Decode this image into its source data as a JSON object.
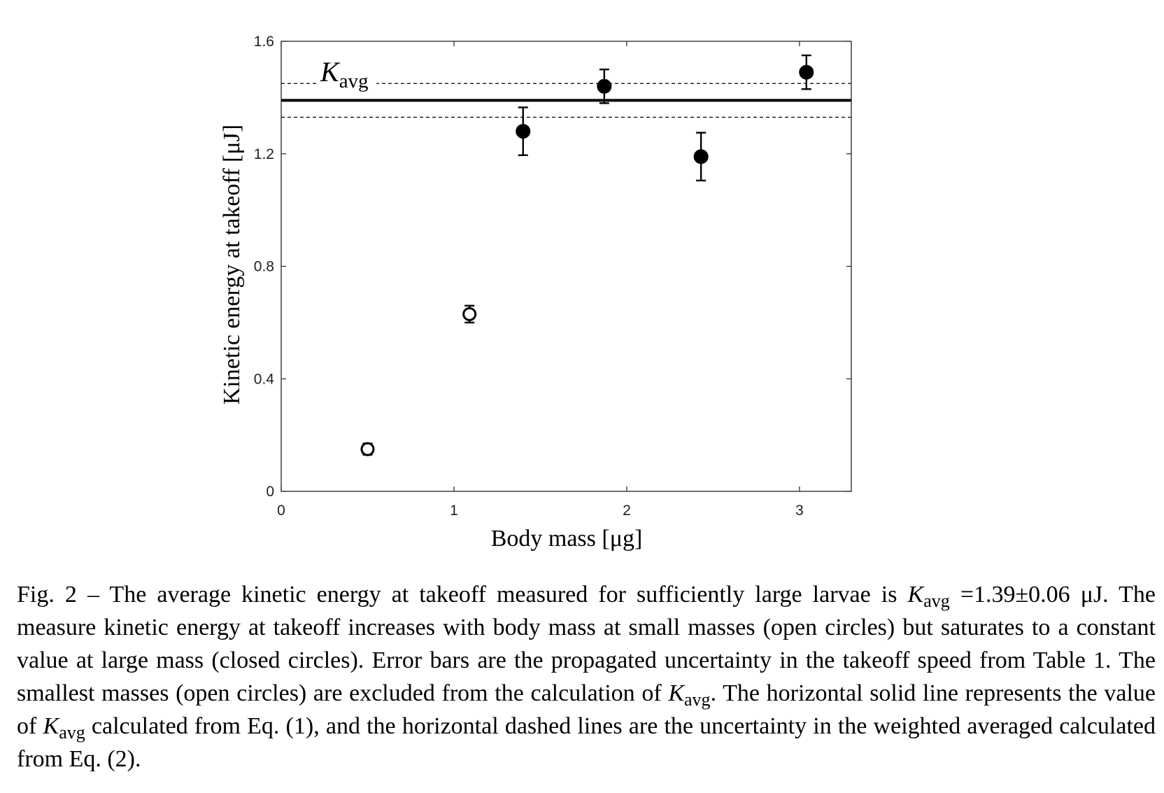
{
  "chart_data": {
    "type": "scatter",
    "xlabel": "Body mass [μg]",
    "ylabel": "Kinetic energy at takeoff [μJ]",
    "xlim": [
      0,
      3.3
    ],
    "ylim": [
      0,
      1.6
    ],
    "x_ticks": [
      "0",
      "1",
      "2",
      "3"
    ],
    "y_ticks": [
      "0",
      "0.4",
      "0.8",
      "1.2",
      "1.6"
    ],
    "grid": false,
    "series": [
      {
        "marker": "open-circle",
        "points": [
          {
            "x": 0.5,
            "y": 0.15,
            "err": 0.02
          },
          {
            "x": 1.09,
            "y": 0.63,
            "err": 0.03
          }
        ]
      },
      {
        "marker": "filled-circle",
        "points": [
          {
            "x": 1.4,
            "y": 1.28,
            "err": 0.085
          },
          {
            "x": 1.87,
            "y": 1.44,
            "err": 0.06
          },
          {
            "x": 2.43,
            "y": 1.19,
            "err": 0.085
          },
          {
            "x": 3.04,
            "y": 1.49,
            "err": 0.06
          }
        ]
      }
    ],
    "reference_lines": {
      "label": "K",
      "label_sub": "avg",
      "value": 1.39,
      "uncertainty": 0.06
    }
  },
  "caption": {
    "p1": "Fig. 2 – The average kinetic energy at takeoff measured for sufficiently large larvae is ",
    "k1": "K",
    "s1": "avg",
    "p2": " =1.39±0.06 μJ. The measure kinetic energy at takeoff increases with body mass at small masses (open circles) but saturates to a constant value at large mass (closed circles). Error bars are the propagated uncertainty in the takeoff speed from Table 1. The smallest masses (open circles) are excluded from the calculation of ",
    "k2": "K",
    "s2": "avg",
    "p3": ". The horizontal solid line represents the value of ",
    "k3": "K",
    "s3": "avg",
    "p4": " calculated from Eq. (1), and the horizontal dashed lines are the uncertainty in the weighted averaged calculated from Eq. (2)."
  }
}
